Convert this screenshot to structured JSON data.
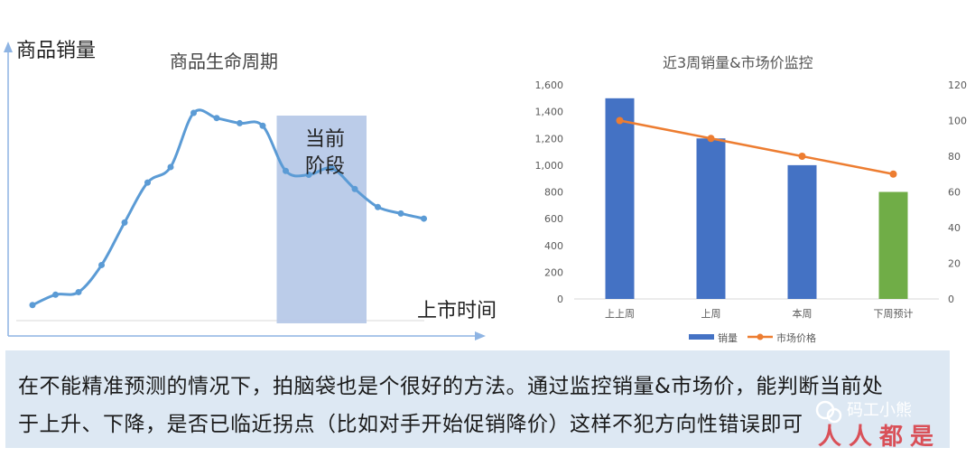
{
  "left_chart": {
    "title": "商品生命周期",
    "ylabel": "商品销量",
    "xlabel": "上市时间",
    "highlight_label": [
      "当前",
      "阶段"
    ],
    "curve_color": "#5b9bd5",
    "highlight_color": "#b4c7e7"
  },
  "chart_data": [
    {
      "type": "line",
      "title": "商品生命周期",
      "xlabel": "上市时间",
      "ylabel": "商品销量",
      "grid": false,
      "x": [
        1,
        2,
        3,
        4,
        5,
        6,
        7,
        8,
        9,
        10,
        11,
        12,
        13,
        14,
        15,
        16,
        17,
        18
      ],
      "values": [
        3,
        11,
        13,
        34,
        67,
        98,
        110,
        152,
        148,
        144,
        142,
        107,
        104,
        109,
        93,
        79,
        74,
        70
      ],
      "highlight_range": [
        12,
        15
      ],
      "highlight_label": "当前阶段"
    },
    {
      "type": "bar",
      "title": "近3周销量&市场价监控",
      "categories": [
        "上上周",
        "上周",
        "本周",
        "下周预计"
      ],
      "series": [
        {
          "name": "销量",
          "type": "bar",
          "axis": "left",
          "values": [
            1500,
            1200,
            1000,
            800
          ],
          "colors": [
            "#4472c4",
            "#4472c4",
            "#4472c4",
            "#70ad47"
          ]
        },
        {
          "name": "市场价格",
          "type": "line",
          "axis": "right",
          "values": [
            100,
            90,
            80,
            70
          ],
          "color": "#ed7d31"
        }
      ],
      "ylim": [
        0,
        1600
      ],
      "yticks": [
        "0",
        "200",
        "400",
        "600",
        "800",
        "1,000",
        "1,200",
        "1,400",
        "1,600"
      ],
      "y2lim": [
        0,
        120
      ],
      "y2ticks": [
        "0",
        "20",
        "40",
        "60",
        "80",
        "100",
        "120"
      ],
      "legend": "bottom",
      "grid": false
    }
  ],
  "caption": {
    "line1": "在不能精准预测的情况下，拍脑袋也是个很好的方法。通过监控销量&市场价，能判断当前处",
    "line2": "于上升、下降，是否已临近拐点（比如对手开始促销降价）这样不犯方向性错误即可"
  },
  "watermark": {
    "wechat": "码工小熊",
    "brand": "人人都是产品经理"
  }
}
